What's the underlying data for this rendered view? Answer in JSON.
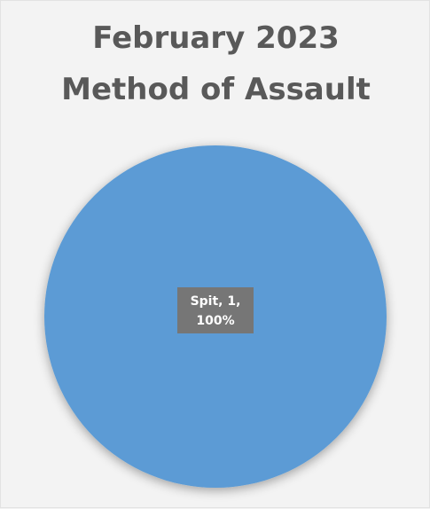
{
  "chart_data": {
    "type": "pie",
    "title_lines": [
      "February 2023",
      "Method of Assault"
    ],
    "categories": [
      "Spit"
    ],
    "values": [
      1
    ],
    "percentages": [
      100
    ],
    "data_labels": [
      [
        "Spit, 1,",
        "100%"
      ]
    ],
    "colors": [
      "#5b9bd5"
    ],
    "legend": "none"
  }
}
